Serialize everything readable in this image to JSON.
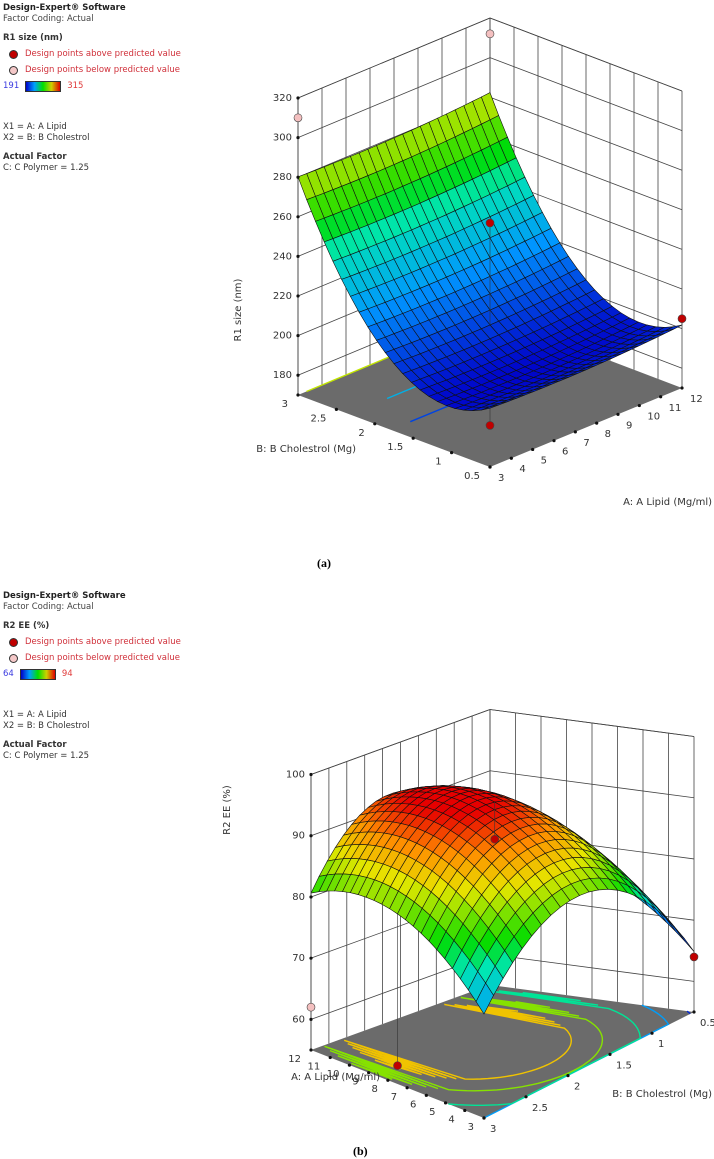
{
  "panels": [
    {
      "id": "a",
      "caption": "(a)",
      "legend": {
        "software": "Design-Expert® Software",
        "coding": "Factor Coding: Actual",
        "response": "R1 size (nm)",
        "above_label": "Design points above predicted value",
        "below_label": "Design points below predicted value",
        "scale_min": "191",
        "scale_max": "315",
        "x1": "X1 = A: A Lipid",
        "x2": "X2 = B: B Cholestrol",
        "actual_factor_title": "Actual Factor",
        "actual_factor": "C: C Polymer = 1.25"
      }
    },
    {
      "id": "b",
      "caption": "(b)",
      "legend": {
        "software": "Design-Expert® Software",
        "coding": "Factor Coding: Actual",
        "response": "R2 EE (%)",
        "above_label": "Design points above predicted value",
        "below_label": "Design points below predicted value",
        "scale_min": "64",
        "scale_max": "94",
        "x1": "X1 = A: A Lipid",
        "x2": "X2 = B: B Cholestrol",
        "actual_factor_title": "Actual Factor",
        "actual_factor": "C: C Polymer = 1.25"
      }
    }
  ],
  "colors": {
    "above_point": "#c00000",
    "below_point": "#f4c0c0",
    "floor": "#6b6b6b",
    "legend_text": "#d0303a",
    "scale_min_color": "#3a3ae0",
    "scale_max_color": "#e03a3a"
  },
  "chart_data": [
    {
      "type": "surface3d",
      "title": "R1 size (nm)",
      "zlabel": "R1 size (nm)",
      "xlabel": "A: A Lipid (Mg/ml)",
      "ylabel": "B: B Cholestrol (Mg)",
      "x_ticks": [
        3,
        4,
        5,
        6,
        7,
        8,
        9,
        10,
        11,
        12
      ],
      "y_ticks": [
        0.5,
        1,
        1.5,
        2,
        2.5,
        3
      ],
      "z_ticks": [
        180,
        200,
        220,
        240,
        260,
        280,
        300,
        320
      ],
      "zlim": [
        170,
        320
      ],
      "color_range": [
        191,
        315
      ],
      "surface_notes": "Surface highest (~310) at B=3, decreases with B to min ~190 near B≈1; relatively flat along A",
      "design_points": [
        {
          "A": 3,
          "B": 3,
          "value": 310,
          "type": "below"
        },
        {
          "A": 12,
          "B": 3,
          "value": 312,
          "type": "below"
        },
        {
          "A": 7.5,
          "B": 1.75,
          "value": 255,
          "type": "above"
        },
        {
          "A": 3,
          "B": 0.5,
          "value": 191,
          "type": "above"
        },
        {
          "A": 12,
          "B": 0.5,
          "value": 205,
          "type": "above"
        }
      ]
    },
    {
      "type": "surface3d",
      "title": "R2 EE (%)",
      "zlabel": "R2 EE (%)",
      "xlabel": "A: A Lipid (Mg/ml)",
      "ylabel": "B: B Cholestrol (Mg)",
      "x_ticks": [
        3,
        4,
        5,
        6,
        7,
        8,
        9,
        10,
        11,
        12
      ],
      "y_ticks": [
        0.5,
        1,
        1.5,
        2,
        2.5,
        3
      ],
      "z_ticks": [
        60,
        70,
        80,
        90,
        100
      ],
      "zlim": [
        55,
        100
      ],
      "color_range": [
        64,
        94
      ],
      "surface_notes": "Dome-shaped surface with maximum ~95 near A≈9, B≈2; minima ~64 at edges",
      "design_points": [
        {
          "A": 12,
          "B": 3,
          "value": 62,
          "type": "below"
        },
        {
          "A": 7.5,
          "B": 1.75,
          "value": 88,
          "type": "above"
        },
        {
          "A": 3,
          "B": 0.5,
          "value": 64,
          "type": "above"
        },
        {
          "A": 7.5,
          "B": 3,
          "value": 58,
          "type": "above"
        }
      ]
    }
  ]
}
